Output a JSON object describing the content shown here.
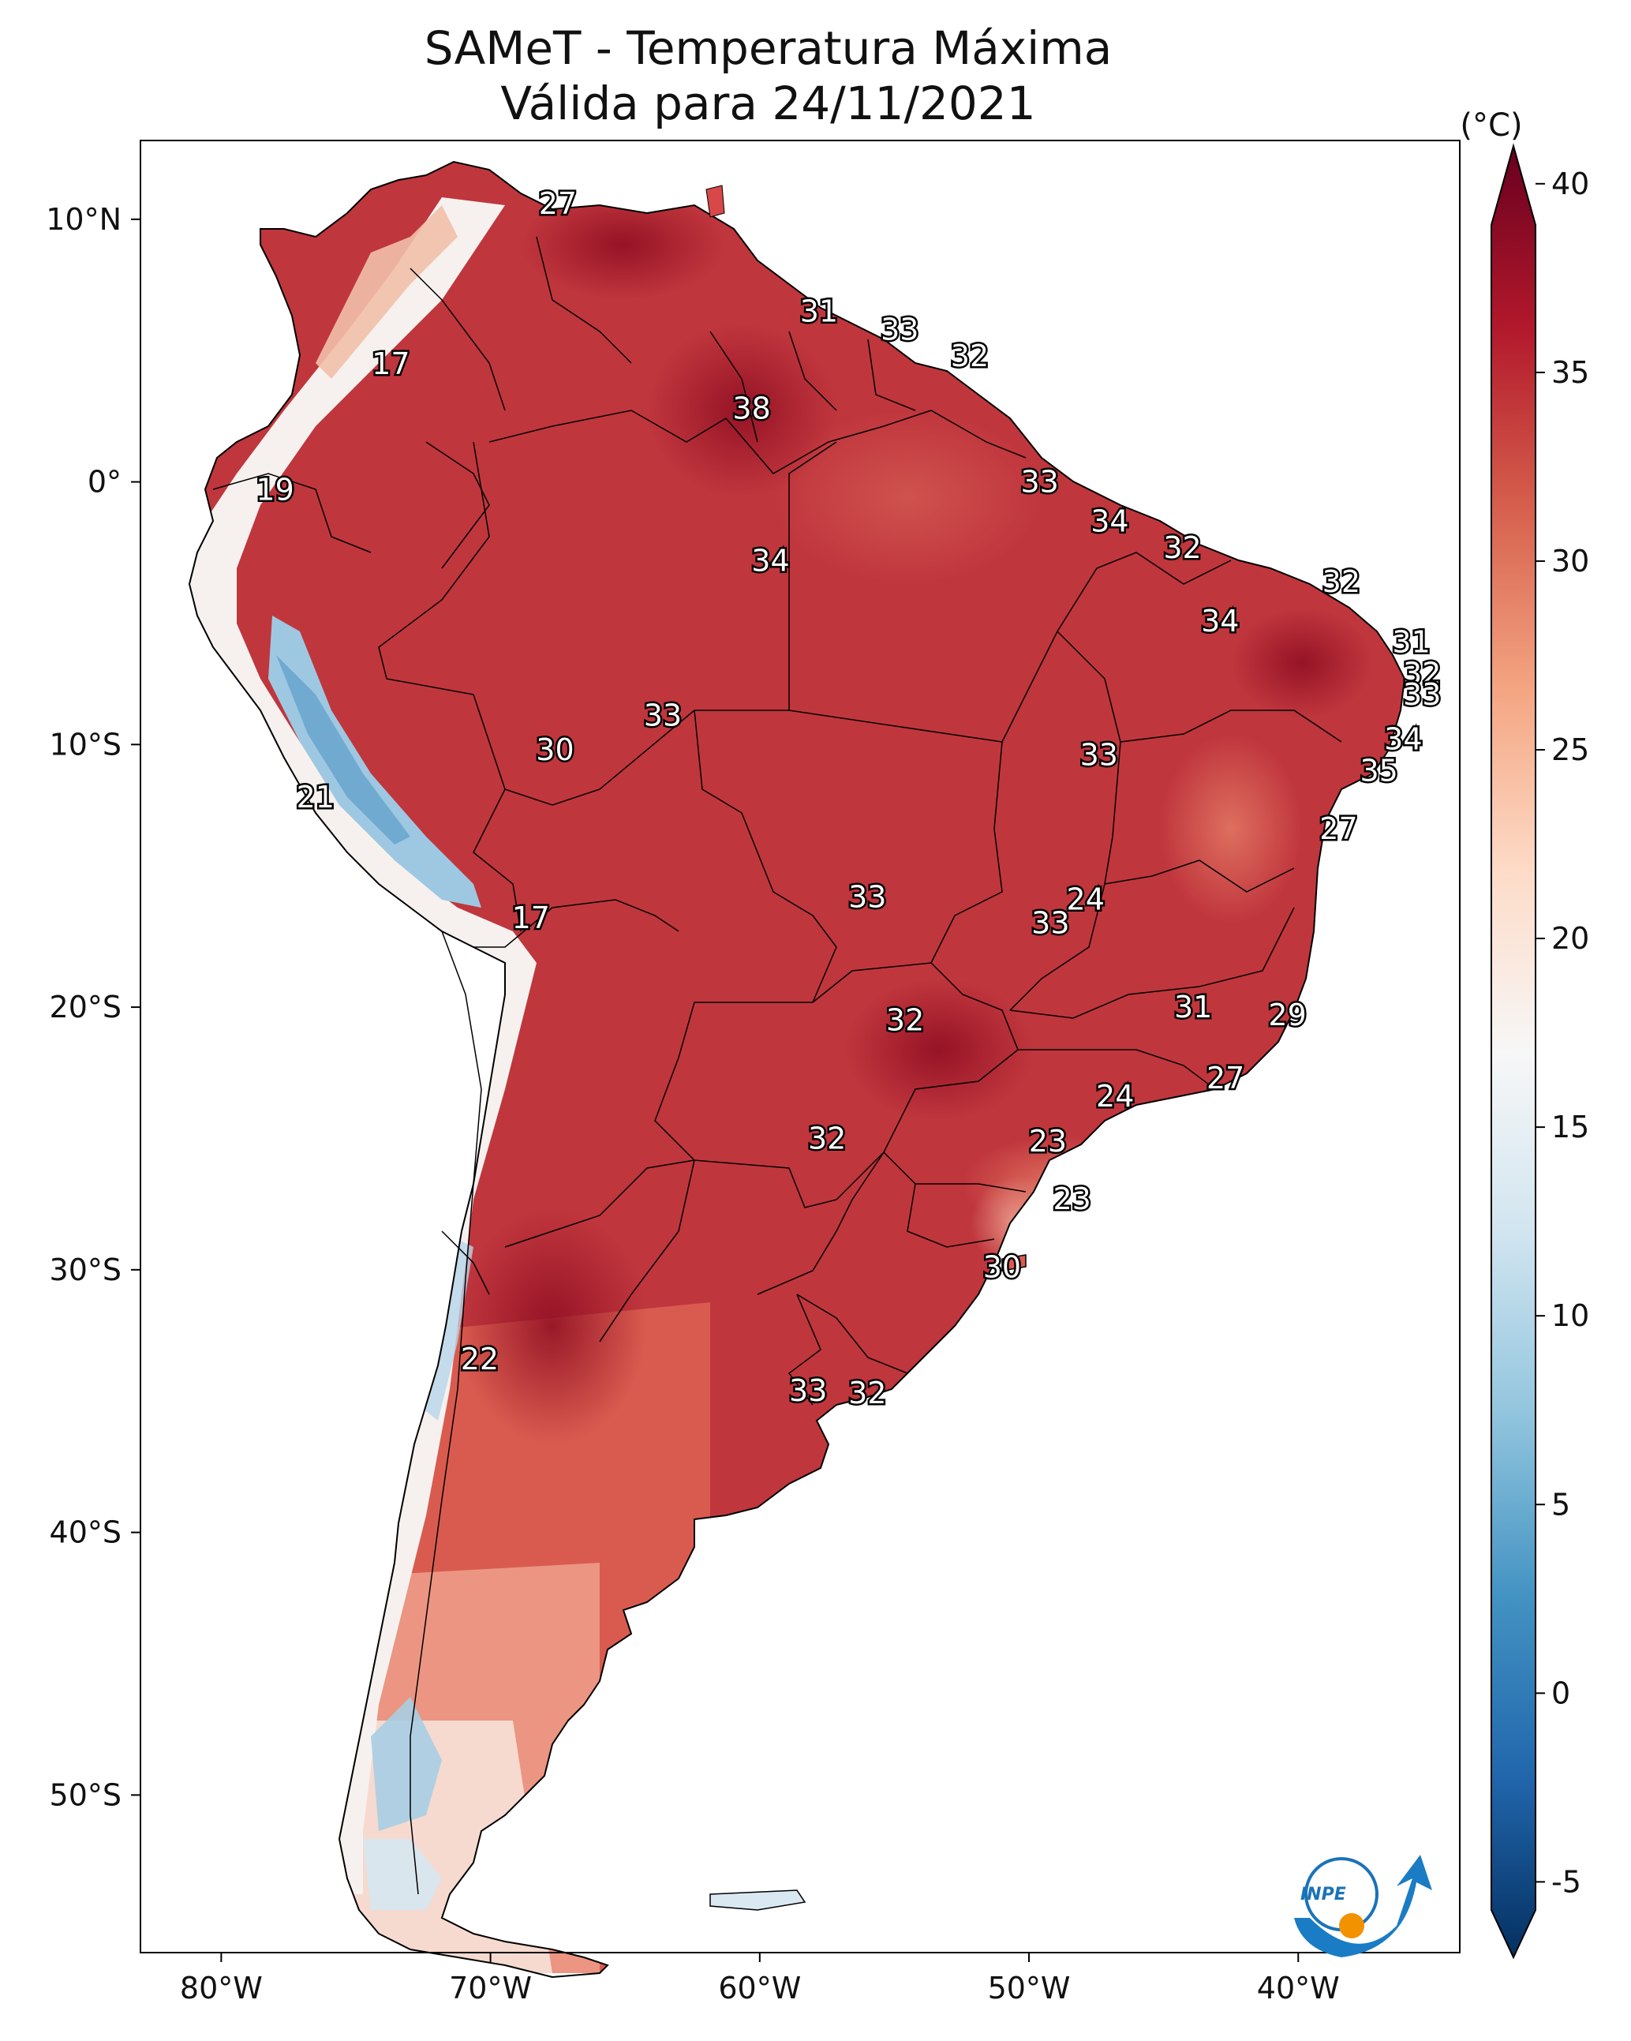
{
  "title": "SAMeT - Temperatura Máxima",
  "subtitle": "Válida para 24/11/2021",
  "colorbar": {
    "unit": "(°C)",
    "ticks": [
      "40",
      "35",
      "30",
      "25",
      "20",
      "15",
      "10",
      "5",
      "0",
      "-5"
    ],
    "range": [
      -7,
      41
    ],
    "colors": [
      "#053061",
      "#2166ac",
      "#4393c3",
      "#92c5de",
      "#d1e5f0",
      "#f7f7f7",
      "#fddbc7",
      "#f4a582",
      "#d6604d",
      "#b2182b",
      "#67001f"
    ]
  },
  "axes": {
    "lon_ticks": [
      "80°W",
      "70°W",
      "60°W",
      "50°W",
      "40°W"
    ],
    "lat_ticks": [
      "10°N",
      "0°",
      "10°S",
      "20°S",
      "30°S",
      "40°S",
      "50°S"
    ],
    "lon_range": [
      -83,
      -34
    ],
    "lat_range": [
      -56,
      13
    ]
  },
  "labels": [
    {
      "v": "27",
      "lon": -67.5,
      "lat": 10.6
    },
    {
      "v": "31",
      "lon": -57.8,
      "lat": 6.5
    },
    {
      "v": "33",
      "lon": -54.8,
      "lat": 5.8
    },
    {
      "v": "32",
      "lon": -52.2,
      "lat": 4.8
    },
    {
      "v": "17",
      "lon": -73.7,
      "lat": 4.5
    },
    {
      "v": "38",
      "lon": -60.3,
      "lat": 2.8
    },
    {
      "v": "19",
      "lon": -78.0,
      "lat": -0.3
    },
    {
      "v": "33",
      "lon": -49.6,
      "lat": 0.0
    },
    {
      "v": "34",
      "lon": -47.0,
      "lat": -1.5
    },
    {
      "v": "32",
      "lon": -44.3,
      "lat": -2.5
    },
    {
      "v": "34",
      "lon": -59.6,
      "lat": -3.0
    },
    {
      "v": "32",
      "lon": -38.4,
      "lat": -3.8
    },
    {
      "v": "34",
      "lon": -42.9,
      "lat": -5.3
    },
    {
      "v": "31",
      "lon": -35.8,
      "lat": -6.1
    },
    {
      "v": "32",
      "lon": -35.4,
      "lat": -7.3
    },
    {
      "v": "33",
      "lon": -35.4,
      "lat": -8.1
    },
    {
      "v": "33",
      "lon": -63.6,
      "lat": -8.9
    },
    {
      "v": "30",
      "lon": -67.6,
      "lat": -10.2
    },
    {
      "v": "33",
      "lon": -47.4,
      "lat": -10.4
    },
    {
      "v": "34",
      "lon": -36.1,
      "lat": -9.8
    },
    {
      "v": "35",
      "lon": -37.0,
      "lat": -11.0
    },
    {
      "v": "21",
      "lon": -76.5,
      "lat": -12.0
    },
    {
      "v": "27",
      "lon": -38.5,
      "lat": -13.2
    },
    {
      "v": "33",
      "lon": -56.0,
      "lat": -15.8
    },
    {
      "v": "24",
      "lon": -47.9,
      "lat": -15.9
    },
    {
      "v": "33",
      "lon": -49.2,
      "lat": -16.8
    },
    {
      "v": "17",
      "lon": -68.5,
      "lat": -16.6
    },
    {
      "v": "31",
      "lon": -43.9,
      "lat": -20.0
    },
    {
      "v": "29",
      "lon": -40.4,
      "lat": -20.3
    },
    {
      "v": "32",
      "lon": -54.6,
      "lat": -20.5
    },
    {
      "v": "27",
      "lon": -42.7,
      "lat": -22.7
    },
    {
      "v": "24",
      "lon": -46.8,
      "lat": -23.4
    },
    {
      "v": "32",
      "lon": -57.5,
      "lat": -25.0
    },
    {
      "v": "23",
      "lon": -49.3,
      "lat": -25.1
    },
    {
      "v": "23",
      "lon": -48.4,
      "lat": -27.3
    },
    {
      "v": "30",
      "lon": -51.0,
      "lat": -29.9
    },
    {
      "v": "22",
      "lon": -70.4,
      "lat": -33.4
    },
    {
      "v": "33",
      "lon": -58.2,
      "lat": -34.6
    },
    {
      "v": "32",
      "lon": -56.0,
      "lat": -34.7
    }
  ]
}
